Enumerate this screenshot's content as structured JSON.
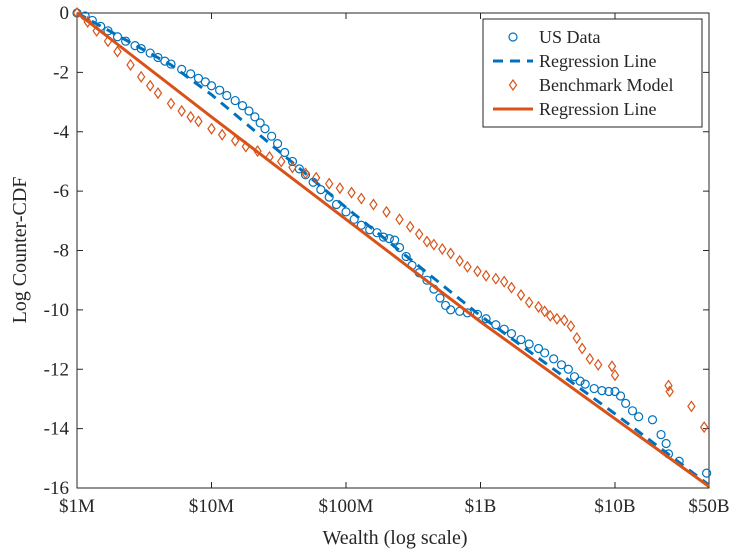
{
  "chart_data": {
    "type": "scatter",
    "title": "",
    "xlabel": "Wealth (log scale)",
    "ylabel": "Log Counter-CDF",
    "xscale": "log",
    "xlim": [
      1000000,
      50000000000
    ],
    "ylim": [
      -16,
      0
    ],
    "x_ticks": [
      {
        "value": 1000000,
        "label": "$1M"
      },
      {
        "value": 10000000,
        "label": "$10M"
      },
      {
        "value": 100000000,
        "label": "$100M"
      },
      {
        "value": 1000000000,
        "label": "$1B"
      },
      {
        "value": 10000000000,
        "label": "$10B"
      },
      {
        "value": 50000000000,
        "label": "$50B"
      }
    ],
    "y_ticks": [
      {
        "value": 0,
        "label": "0"
      },
      {
        "value": -2,
        "label": "-2"
      },
      {
        "value": -4,
        "label": "-4"
      },
      {
        "value": -6,
        "label": "-6"
      },
      {
        "value": -8,
        "label": "-8"
      },
      {
        "value": -10,
        "label": "-10"
      },
      {
        "value": -12,
        "label": "-12"
      },
      {
        "value": -14,
        "label": "-14"
      },
      {
        "value": -16,
        "label": "-16"
      }
    ],
    "grid": false,
    "legend_position": "top-right",
    "colors": {
      "us": "#0072BD",
      "model": "#D95319"
    },
    "series": [
      {
        "name": "US Data",
        "kind": "scatter",
        "marker": "circle",
        "color": "#0072BD",
        "points": [
          [
            1000000,
            0
          ],
          [
            1150000,
            -0.1
          ],
          [
            1300000,
            -0.25
          ],
          [
            1500000,
            -0.45
          ],
          [
            1700000,
            -0.6
          ],
          [
            2000000,
            -0.8
          ],
          [
            2300000,
            -0.95
          ],
          [
            2700000,
            -1.1
          ],
          [
            3000000,
            -1.2
          ],
          [
            3500000,
            -1.35
          ],
          [
            4000000,
            -1.5
          ],
          [
            4500000,
            -1.62
          ],
          [
            5000000,
            -1.72
          ],
          [
            6000000,
            -1.9
          ],
          [
            7000000,
            -2.05
          ],
          [
            8000000,
            -2.2
          ],
          [
            9000000,
            -2.32
          ],
          [
            10000000,
            -2.45
          ],
          [
            11500000,
            -2.6
          ],
          [
            13000000,
            -2.78
          ],
          [
            15000000,
            -2.95
          ],
          [
            17000000,
            -3.12
          ],
          [
            19000000,
            -3.3
          ],
          [
            21000000,
            -3.5
          ],
          [
            23000000,
            -3.7
          ],
          [
            25000000,
            -3.9
          ],
          [
            28000000,
            -4.15
          ],
          [
            31000000,
            -4.4
          ],
          [
            35000000,
            -4.7
          ],
          [
            40000000,
            -5.0
          ],
          [
            45000000,
            -5.25
          ],
          [
            50000000,
            -5.45
          ],
          [
            57000000,
            -5.7
          ],
          [
            65000000,
            -5.95
          ],
          [
            75000000,
            -6.2
          ],
          [
            85000000,
            -6.45
          ],
          [
            100000000,
            -6.7
          ],
          [
            115000000,
            -6.95
          ],
          [
            130000000,
            -7.15
          ],
          [
            150000000,
            -7.3
          ],
          [
            170000000,
            -7.4
          ],
          [
            190000000,
            -7.55
          ],
          [
            210000000,
            -7.6
          ],
          [
            230000000,
            -7.65
          ],
          [
            250000000,
            -7.9
          ],
          [
            280000000,
            -8.2
          ],
          [
            310000000,
            -8.5
          ],
          [
            350000000,
            -8.75
          ],
          [
            400000000,
            -9.0
          ],
          [
            450000000,
            -9.3
          ],
          [
            500000000,
            -9.6
          ],
          [
            550000000,
            -9.85
          ],
          [
            600000000,
            -10.0
          ],
          [
            700000000,
            -10.05
          ],
          [
            800000000,
            -10.1
          ],
          [
            950000000,
            -10.15
          ],
          [
            1100000000,
            -10.3
          ],
          [
            1300000000,
            -10.5
          ],
          [
            1500000000,
            -10.65
          ],
          [
            1700000000,
            -10.8
          ],
          [
            2000000000,
            -11.0
          ],
          [
            2300000000,
            -11.15
          ],
          [
            2700000000,
            -11.3
          ],
          [
            3000000000,
            -11.45
          ],
          [
            3500000000,
            -11.65
          ],
          [
            4000000000,
            -11.85
          ],
          [
            4500000000,
            -12.0
          ],
          [
            5000000000,
            -12.25
          ],
          [
            5500000000,
            -12.4
          ],
          [
            6000000000,
            -12.5
          ],
          [
            7000000000,
            -12.65
          ],
          [
            8000000000,
            -12.72
          ],
          [
            9000000000,
            -12.75
          ],
          [
            10000000000,
            -12.75
          ],
          [
            11000000000,
            -12.9
          ],
          [
            12000000000,
            -13.15
          ],
          [
            13500000000,
            -13.4
          ],
          [
            15000000000,
            -13.6
          ],
          [
            19000000000,
            -13.7
          ],
          [
            22000000000,
            -14.2
          ],
          [
            24000000000,
            -14.5
          ],
          [
            25000000000,
            -14.85
          ],
          [
            30000000000,
            -15.1
          ],
          [
            48000000000,
            -15.5
          ]
        ]
      },
      {
        "name": "Regression Line",
        "kind": "line",
        "dash": "dashed",
        "color": "#0072BD",
        "points": [
          [
            1000000,
            0
          ],
          [
            5000000,
            -1.75
          ],
          [
            10000000,
            -2.75
          ],
          [
            100000000,
            -6.55
          ],
          [
            1000000000,
            -10.2
          ],
          [
            10000000000,
            -13.5
          ],
          [
            50000000000,
            -15.9
          ]
        ]
      },
      {
        "name": "Benchmark Model",
        "kind": "scatter",
        "marker": "diamond",
        "color": "#D95319",
        "points": [
          [
            1000000,
            0
          ],
          [
            1200000,
            -0.3
          ],
          [
            1400000,
            -0.6
          ],
          [
            1700000,
            -0.95
          ],
          [
            2000000,
            -1.3
          ],
          [
            2500000,
            -1.75
          ],
          [
            3000000,
            -2.15
          ],
          [
            3500000,
            -2.45
          ],
          [
            4000000,
            -2.7
          ],
          [
            5000000,
            -3.05
          ],
          [
            6000000,
            -3.3
          ],
          [
            7000000,
            -3.5
          ],
          [
            8000000,
            -3.65
          ],
          [
            10000000,
            -3.9
          ],
          [
            12000000,
            -4.1
          ],
          [
            15000000,
            -4.3
          ],
          [
            18000000,
            -4.5
          ],
          [
            22000000,
            -4.65
          ],
          [
            27000000,
            -4.85
          ],
          [
            33000000,
            -5.0
          ],
          [
            40000000,
            -5.2
          ],
          [
            50000000,
            -5.4
          ],
          [
            60000000,
            -5.55
          ],
          [
            75000000,
            -5.75
          ],
          [
            90000000,
            -5.9
          ],
          [
            110000000,
            -6.05
          ],
          [
            130000000,
            -6.25
          ],
          [
            160000000,
            -6.45
          ],
          [
            200000000,
            -6.7
          ],
          [
            250000000,
            -6.95
          ],
          [
            300000000,
            -7.2
          ],
          [
            350000000,
            -7.45
          ],
          [
            400000000,
            -7.7
          ],
          [
            450000000,
            -7.8
          ],
          [
            520000000,
            -7.95
          ],
          [
            600000000,
            -8.1
          ],
          [
            700000000,
            -8.35
          ],
          [
            800000000,
            -8.55
          ],
          [
            950000000,
            -8.7
          ],
          [
            1100000000,
            -8.85
          ],
          [
            1300000000,
            -8.95
          ],
          [
            1500000000,
            -9.05
          ],
          [
            1700000000,
            -9.25
          ],
          [
            2000000000,
            -9.5
          ],
          [
            2300000000,
            -9.75
          ],
          [
            2700000000,
            -9.9
          ],
          [
            3000000000,
            -10.05
          ],
          [
            3300000000,
            -10.2
          ],
          [
            3700000000,
            -10.3
          ],
          [
            4200000000,
            -10.35
          ],
          [
            4700000000,
            -10.55
          ],
          [
            5200000000,
            -10.95
          ],
          [
            5700000000,
            -11.3
          ],
          [
            6500000000,
            -11.65
          ],
          [
            7500000000,
            -11.85
          ],
          [
            9500000000,
            -11.9
          ],
          [
            10000000000,
            -12.2
          ],
          [
            25000000000,
            -12.55
          ],
          [
            25500000000,
            -12.75
          ],
          [
            37000000000,
            -13.25
          ],
          [
            46000000000,
            -13.95
          ]
        ]
      },
      {
        "name": "Regression Line",
        "kind": "line",
        "dash": "solid",
        "color": "#D95319",
        "points": [
          [
            1000000,
            0
          ],
          [
            10000000,
            -3.5
          ],
          [
            1000000000,
            -10.4
          ],
          [
            50000000000,
            -15.95
          ]
        ]
      }
    ]
  }
}
